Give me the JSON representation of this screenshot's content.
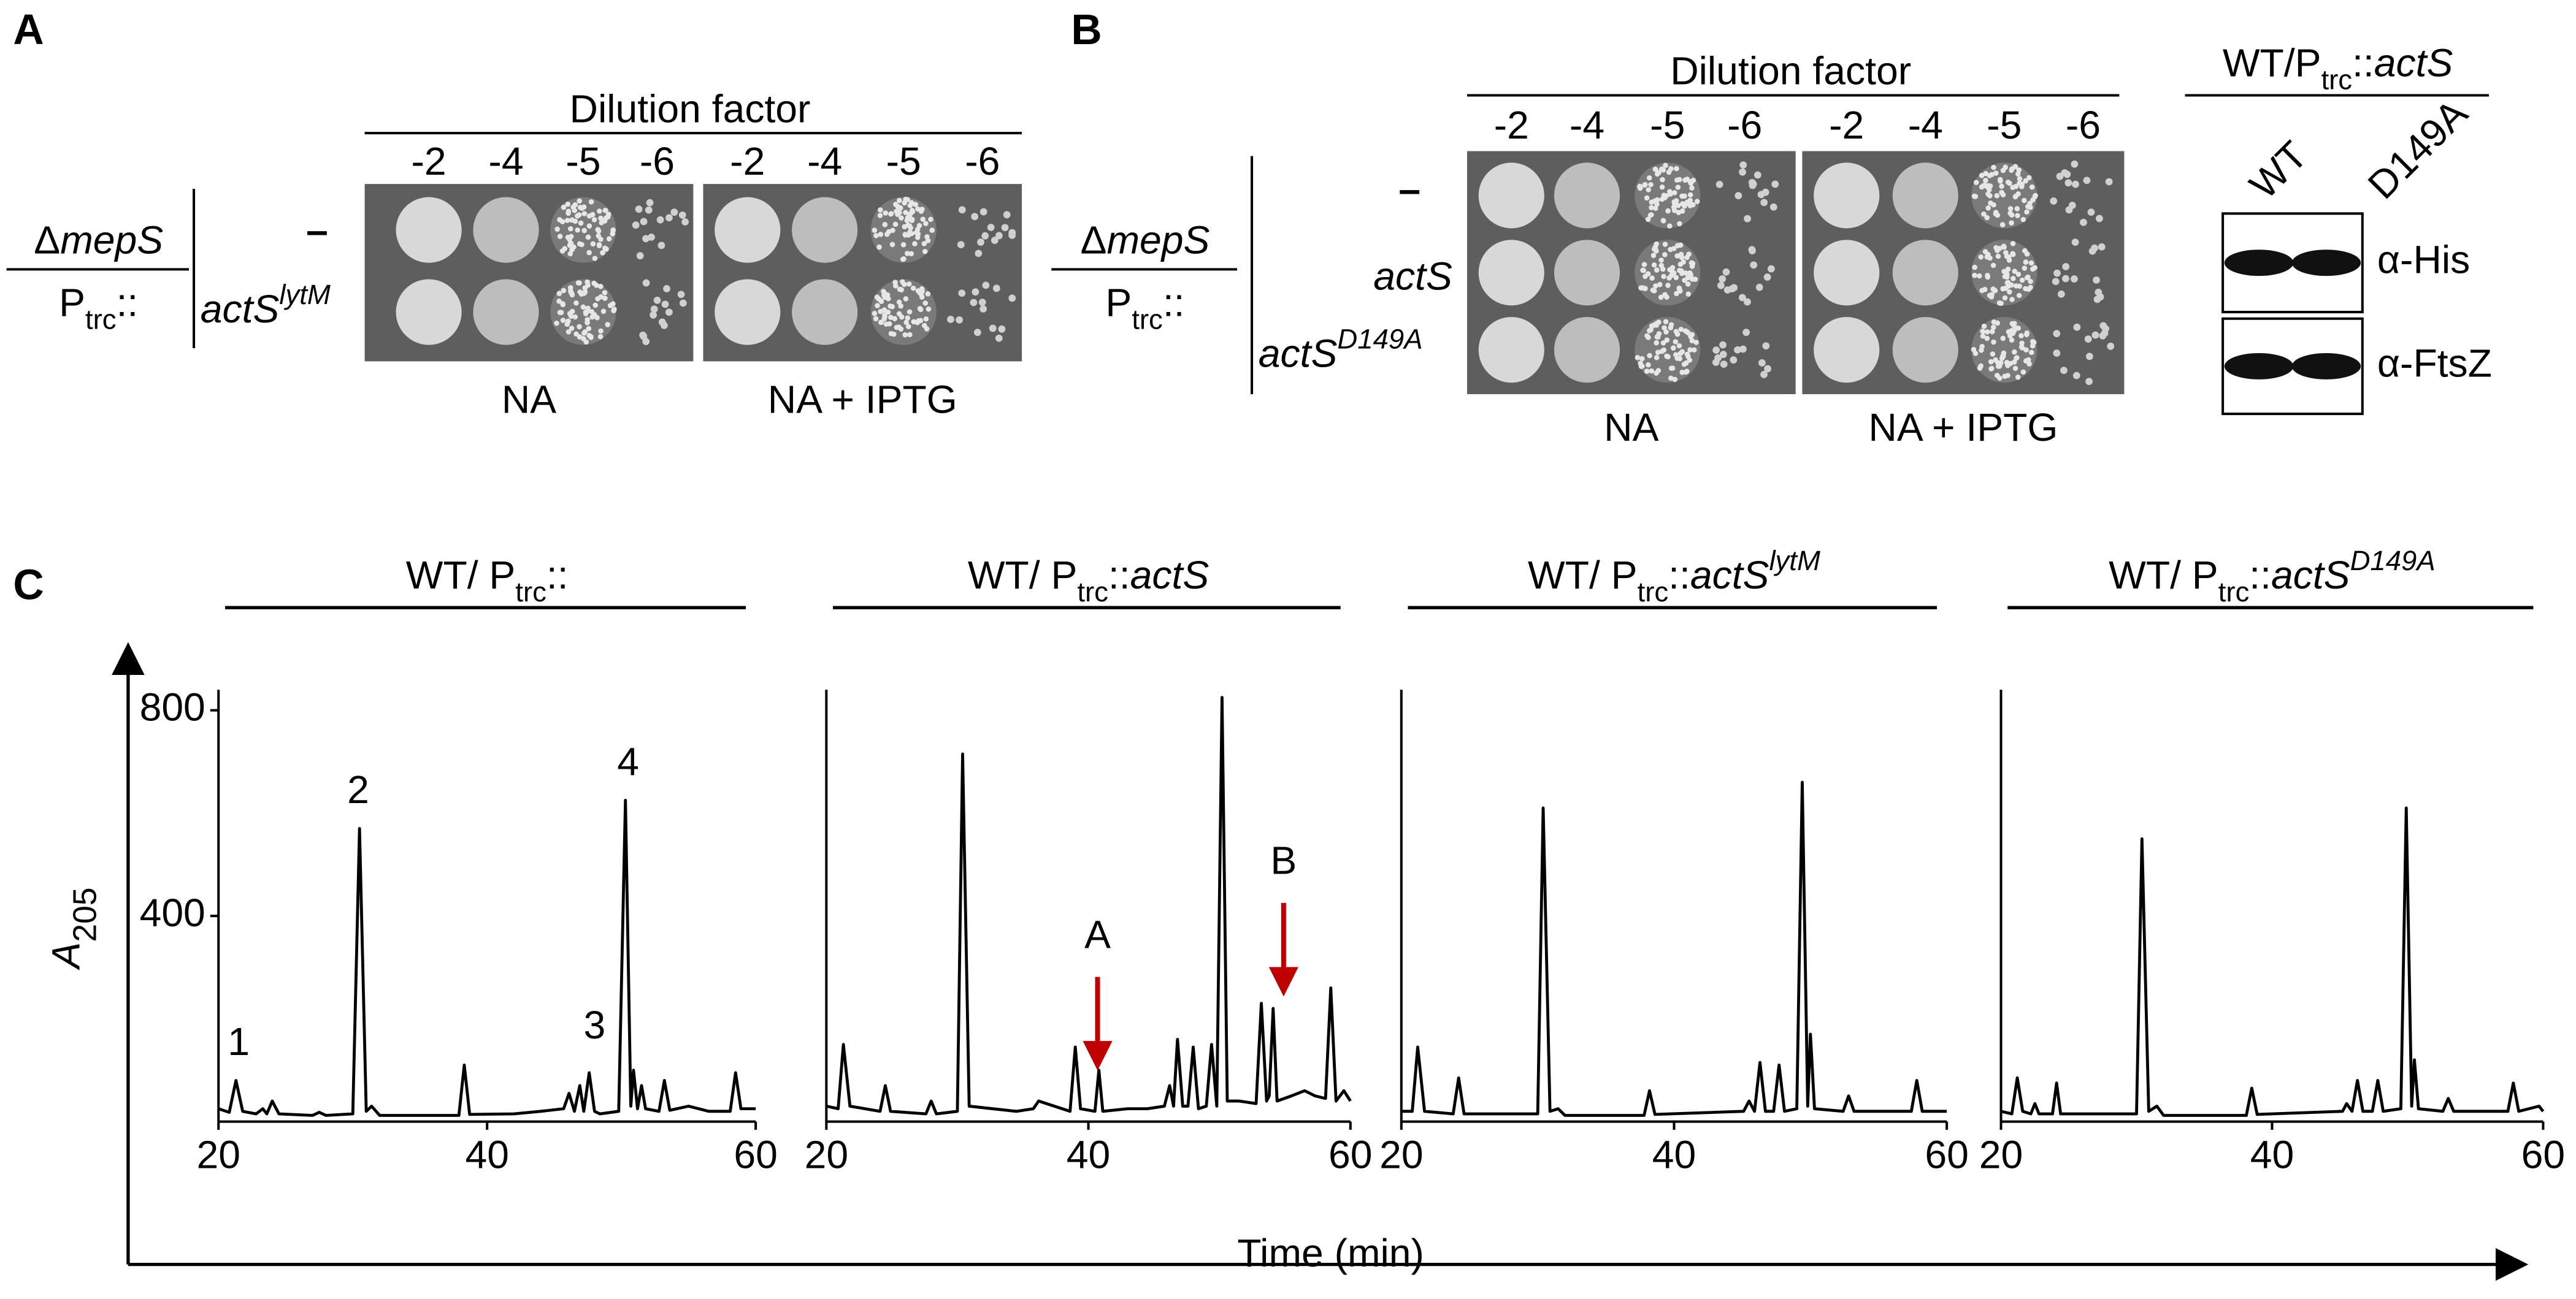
{
  "panel_a": {
    "label": "A",
    "dilution_header": "Dilution factor",
    "strain": {
      "delta": "Δ",
      "gene": "mepS",
      "promoter": "P",
      "promoter_sub": "trc",
      "suffix": "::"
    },
    "rows": [
      {
        "text": "–"
      },
      {
        "gene": "actS",
        "sup": "lytM"
      }
    ],
    "plates": [
      {
        "medium": "NA",
        "dilutions": [
          "-2",
          "-4",
          "-5",
          "-6"
        ]
      },
      {
        "medium": "NA + IPTG",
        "dilutions": [
          "-2",
          "-4",
          "-5",
          "-6"
        ]
      }
    ]
  },
  "panel_b": {
    "label": "B",
    "dilution_header": "Dilution factor",
    "strain": {
      "delta": "Δ",
      "gene": "mepS",
      "promoter": "P",
      "promoter_sub": "trc",
      "suffix": "::"
    },
    "rows": [
      {
        "text": "–"
      },
      {
        "gene": "actS"
      },
      {
        "gene": "actS",
        "sup": "D149A"
      }
    ],
    "plates": [
      {
        "medium": "NA",
        "dilutions": [
          "-2",
          "-4",
          "-5",
          "-6"
        ]
      },
      {
        "medium": "NA + IPTG",
        "dilutions": [
          "-2",
          "-4",
          "-5",
          "-6"
        ]
      }
    ],
    "blot": {
      "title": {
        "main": "WT/P",
        "sub": "trc",
        "suffix": "::",
        "gene": "actS"
      },
      "lanes": [
        "WT",
        "D149A"
      ],
      "antibodies": [
        "α-His",
        "α-FtsZ"
      ]
    }
  },
  "panel_c": {
    "label": "C",
    "y_label": {
      "main": "A",
      "sub": "205"
    },
    "x_label": "Time (min)"
  },
  "chart_data": [
    {
      "type": "line",
      "title": {
        "main": "WT/ P",
        "sub": "trc",
        "suffix": "::"
      },
      "color": "#000000",
      "xlim": [
        20,
        60
      ],
      "xticks": [
        20,
        40,
        60
      ],
      "ylim": [
        0,
        840
      ],
      "yticks": [
        400,
        800
      ],
      "x": [
        20,
        20.8,
        21.3,
        21.8,
        22.8,
        23.3,
        23.6,
        24.0,
        24.5,
        27.0,
        27.5,
        28,
        30.0,
        30.5,
        31.0,
        31.4,
        32,
        37.9,
        38.3,
        38.7,
        42,
        44,
        45.7,
        46.1,
        46.5,
        46.9,
        47.2,
        47.6,
        48.0,
        48.4,
        49.8,
        50.3,
        50.7,
        50.9,
        51.2,
        51.5,
        51.8,
        52.8,
        53.2,
        53.6,
        55,
        56.5,
        58.1,
        58.5,
        58.9,
        60
      ],
      "values": [
        25,
        18,
        80,
        20,
        15,
        25,
        15,
        40,
        15,
        12,
        18,
        12,
        15,
        570,
        20,
        30,
        12,
        12,
        110,
        14,
        15,
        20,
        25,
        55,
        20,
        70,
        20,
        95,
        20,
        15,
        20,
        625,
        30,
        100,
        25,
        70,
        25,
        20,
        80,
        22,
        30,
        20,
        20,
        95,
        25,
        25
      ],
      "annotations": [
        {
          "text": "1",
          "x": 21.5,
          "y": 150
        },
        {
          "text": "2",
          "x": 30.4,
          "y": 640
        },
        {
          "text": "3",
          "x": 48,
          "y": 182
        },
        {
          "text": "4",
          "x": 50.5,
          "y": 694
        }
      ]
    },
    {
      "type": "line",
      "title": {
        "main": "WT/ P",
        "sub": "trc",
        "suffix": "::",
        "gene": "actS"
      },
      "color": "#000000",
      "xlim": [
        20,
        60
      ],
      "xticks": [
        20,
        40,
        60
      ],
      "ylim": [
        0,
        840
      ],
      "x": [
        20,
        20.9,
        21.3,
        21.8,
        24.1,
        24.5,
        24.9,
        27.6,
        28,
        28.4,
        30.0,
        30.4,
        30.9,
        34.5,
        35.8,
        36.2,
        38.6,
        39.0,
        39.4,
        40.5,
        40.8,
        41.1,
        43,
        44.5,
        45.8,
        46.2,
        46.5,
        46.8,
        47.2,
        47.6,
        48.0,
        48.4,
        49.0,
        49.4,
        49.8,
        50.2,
        50.6,
        51.5,
        52.8,
        53.2,
        53.6,
        53.8,
        54.1,
        54.4,
        55.5,
        56.5,
        57.3,
        58.1,
        58.5,
        58.9,
        59.5,
        60
      ],
      "values": [
        30,
        25,
        150,
        30,
        20,
        70,
        20,
        15,
        40,
        15,
        20,
        715,
        30,
        20,
        25,
        40,
        20,
        145,
        25,
        20,
        100,
        20,
        25,
        25,
        30,
        70,
        30,
        160,
        30,
        30,
        145,
        25,
        30,
        150,
        30,
        825,
        40,
        40,
        35,
        230,
        40,
        50,
        220,
        40,
        50,
        60,
        50,
        45,
        260,
        40,
        60,
        40
      ],
      "arrow_color": "#c00000",
      "annotations": [
        {
          "text": "A",
          "x": 40.7,
          "y": 358
        },
        {
          "text": "B",
          "x": 54.9,
          "y": 502
        }
      ]
    },
    {
      "type": "line",
      "title": {
        "main": "WT/ P",
        "sub": "trc",
        "suffix": "::",
        "gene": "actS",
        "sup": "lytM"
      },
      "color": "#000000",
      "xlim": [
        20,
        60
      ],
      "xticks": [
        20,
        40,
        60
      ],
      "ylim": [
        0,
        840
      ],
      "x": [
        20,
        20.8,
        21.2,
        21.7,
        23.8,
        24.2,
        24.6,
        30.0,
        30.4,
        30.9,
        31.5,
        32,
        37.8,
        38.2,
        38.6,
        45.1,
        45.5,
        45.9,
        46.3,
        46.7,
        47.3,
        47.7,
        48.1,
        49.0,
        49.4,
        49.8,
        50.0,
        50.3,
        52.4,
        52.8,
        53.2,
        57.4,
        57.8,
        58.2,
        60
      ],
      "values": [
        20,
        20,
        145,
        20,
        15,
        85,
        15,
        15,
        610,
        20,
        25,
        12,
        12,
        60,
        14,
        20,
        40,
        20,
        115,
        20,
        20,
        110,
        20,
        25,
        660,
        30,
        170,
        25,
        20,
        50,
        20,
        20,
        80,
        20,
        20
      ]
    },
    {
      "type": "line",
      "title": {
        "main": "WT/ P",
        "sub": "trc",
        "suffix": "::",
        "gene": "actS",
        "sup": "D149A"
      },
      "color": "#000000",
      "xlim": [
        20,
        60
      ],
      "xticks": [
        20,
        40,
        60
      ],
      "ylim": [
        0,
        840
      ],
      "x": [
        20,
        20.8,
        21.2,
        21.6,
        22.2,
        22.5,
        22.8,
        23.8,
        24.1,
        24.4,
        30.0,
        30.4,
        30.9,
        31.5,
        32,
        38.1,
        38.5,
        38.9,
        45.2,
        45.5,
        45.9,
        46.3,
        46.7,
        47.4,
        47.8,
        48.2,
        49.5,
        49.9,
        50.3,
        50.5,
        50.8,
        52.6,
        53.0,
        53.4,
        57.4,
        57.8,
        58.2,
        59.7,
        60
      ],
      "values": [
        20,
        15,
        85,
        20,
        15,
        35,
        15,
        15,
        75,
        15,
        15,
        550,
        20,
        30,
        12,
        12,
        65,
        14,
        20,
        35,
        20,
        80,
        20,
        20,
        80,
        20,
        25,
        610,
        30,
        120,
        25,
        20,
        45,
        20,
        20,
        75,
        20,
        30,
        20
      ]
    }
  ]
}
